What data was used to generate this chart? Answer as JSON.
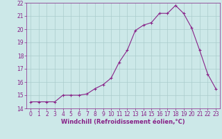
{
  "x": [
    0,
    1,
    2,
    3,
    4,
    5,
    6,
    7,
    8,
    9,
    10,
    11,
    12,
    13,
    14,
    15,
    16,
    17,
    18,
    19,
    20,
    21,
    22,
    23
  ],
  "y": [
    14.5,
    14.5,
    14.5,
    14.5,
    15.0,
    15.0,
    15.0,
    15.1,
    15.5,
    15.8,
    16.3,
    17.5,
    18.4,
    19.9,
    20.3,
    20.5,
    21.2,
    21.2,
    21.8,
    21.2,
    20.1,
    18.4,
    16.6,
    15.5
  ],
  "line_color": "#882288",
  "marker": "+",
  "bg_color": "#cce8e8",
  "grid_color": "#aacccc",
  "ylim": [
    14,
    22
  ],
  "xlim": [
    -0.5,
    23.5
  ],
  "yticks": [
    14,
    15,
    16,
    17,
    18,
    19,
    20,
    21,
    22
  ],
  "xticks": [
    0,
    1,
    2,
    3,
    4,
    5,
    6,
    7,
    8,
    9,
    10,
    11,
    12,
    13,
    14,
    15,
    16,
    17,
    18,
    19,
    20,
    21,
    22,
    23
  ],
  "xlabel": "Windchill (Refroidissement éolien,°C)",
  "xlabel_fontsize": 6.0,
  "tick_fontsize": 5.5,
  "tick_color": "#882288",
  "label_color": "#882288",
  "linewidth": 0.8,
  "markersize": 3.5,
  "markeredgewidth": 0.8
}
